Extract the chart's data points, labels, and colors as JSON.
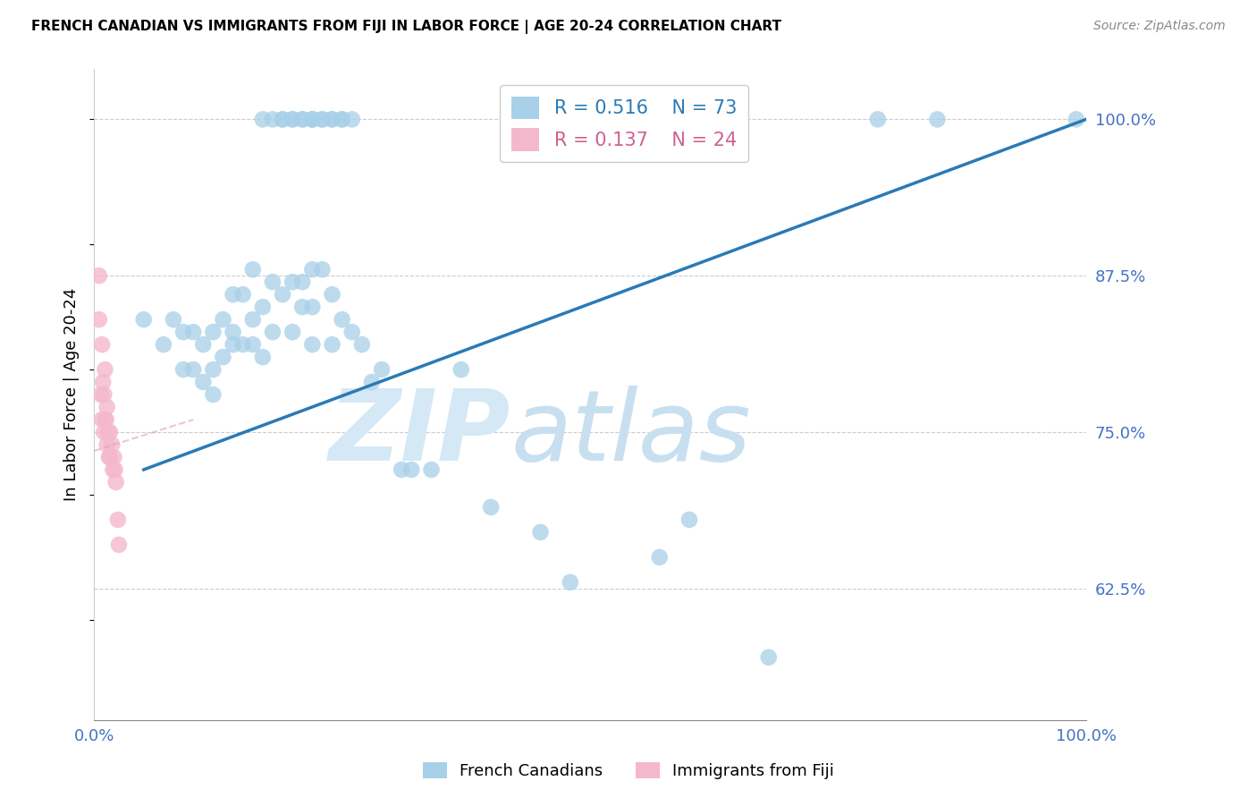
{
  "title": "FRENCH CANADIAN VS IMMIGRANTS FROM FIJI IN LABOR FORCE | AGE 20-24 CORRELATION CHART",
  "source": "Source: ZipAtlas.com",
  "ylabel": "In Labor Force | Age 20-24",
  "ytick_labels": [
    "100.0%",
    "87.5%",
    "75.0%",
    "62.5%"
  ],
  "ytick_values": [
    1.0,
    0.875,
    0.75,
    0.625
  ],
  "xlim": [
    0.0,
    1.0
  ],
  "ylim": [
    0.52,
    1.04
  ],
  "blue_R": 0.516,
  "blue_N": 73,
  "pink_R": 0.137,
  "pink_N": 24,
  "blue_color": "#a8d0e8",
  "pink_color": "#f4b8cc",
  "blue_line_color": "#2a7ab5",
  "pink_line_color": "#e8a0b4",
  "watermark_zip": "ZIP",
  "watermark_atlas": "atlas",
  "watermark_color": "#d5e8f5",
  "blue_scatter_x": [
    0.05,
    0.07,
    0.08,
    0.09,
    0.09,
    0.1,
    0.1,
    0.11,
    0.11,
    0.12,
    0.12,
    0.12,
    0.13,
    0.13,
    0.14,
    0.14,
    0.14,
    0.15,
    0.15,
    0.16,
    0.16,
    0.16,
    0.17,
    0.17,
    0.18,
    0.18,
    0.19,
    0.2,
    0.2,
    0.21,
    0.21,
    0.22,
    0.22,
    0.22,
    0.23,
    0.24,
    0.24,
    0.25,
    0.26,
    0.27,
    0.28,
    0.29,
    0.31,
    0.32,
    0.34,
    0.37,
    0.4,
    0.45,
    0.48,
    0.57,
    0.17,
    0.18,
    0.19,
    0.19,
    0.2,
    0.2,
    0.21,
    0.21,
    0.22,
    0.22,
    0.22,
    0.23,
    0.23,
    0.24,
    0.24,
    0.25,
    0.25,
    0.26,
    0.79,
    0.85,
    0.6,
    0.68,
    0.99
  ],
  "blue_scatter_y": [
    0.84,
    0.82,
    0.84,
    0.8,
    0.83,
    0.83,
    0.8,
    0.82,
    0.79,
    0.83,
    0.8,
    0.78,
    0.84,
    0.81,
    0.86,
    0.83,
    0.82,
    0.86,
    0.82,
    0.88,
    0.84,
    0.82,
    0.85,
    0.81,
    0.87,
    0.83,
    0.86,
    0.87,
    0.83,
    0.87,
    0.85,
    0.88,
    0.85,
    0.82,
    0.88,
    0.86,
    0.82,
    0.84,
    0.83,
    0.82,
    0.79,
    0.8,
    0.72,
    0.72,
    0.72,
    0.8,
    0.69,
    0.67,
    0.63,
    0.65,
    1.0,
    1.0,
    1.0,
    1.0,
    1.0,
    1.0,
    1.0,
    1.0,
    1.0,
    1.0,
    1.0,
    1.0,
    1.0,
    1.0,
    1.0,
    1.0,
    1.0,
    1.0,
    1.0,
    1.0,
    0.68,
    0.57,
    1.0
  ],
  "pink_scatter_x": [
    0.005,
    0.005,
    0.007,
    0.008,
    0.008,
    0.009,
    0.01,
    0.01,
    0.011,
    0.011,
    0.012,
    0.013,
    0.013,
    0.014,
    0.015,
    0.016,
    0.016,
    0.018,
    0.019,
    0.02,
    0.021,
    0.022,
    0.024,
    0.025
  ],
  "pink_scatter_y": [
    0.875,
    0.84,
    0.78,
    0.82,
    0.76,
    0.79,
    0.75,
    0.78,
    0.76,
    0.8,
    0.76,
    0.74,
    0.77,
    0.75,
    0.73,
    0.75,
    0.73,
    0.74,
    0.72,
    0.73,
    0.72,
    0.71,
    0.68,
    0.66
  ],
  "blue_line_x0": 0.05,
  "blue_line_y0": 0.72,
  "blue_line_x1": 1.0,
  "blue_line_y1": 1.0,
  "pink_line_x0": 0.0,
  "pink_line_y0": 0.735,
  "pink_line_x1": 0.1,
  "pink_line_y1": 0.76
}
